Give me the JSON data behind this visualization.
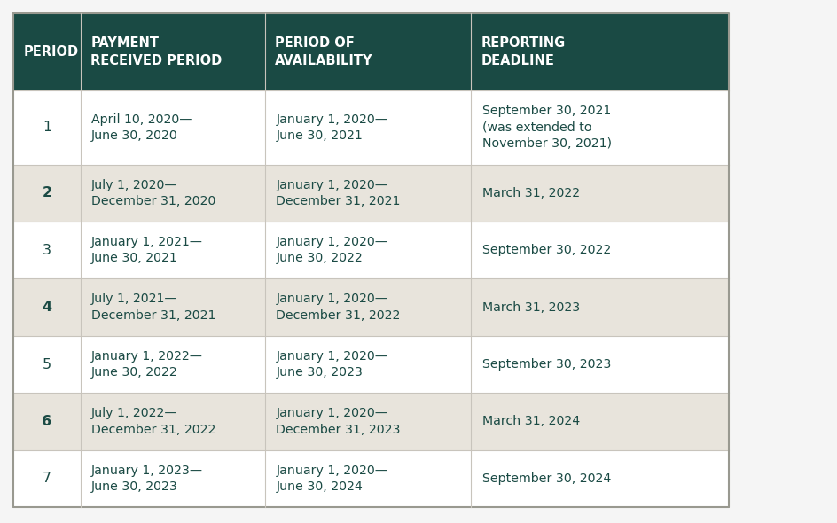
{
  "header_bg": "#1a4a44",
  "header_text_color": "#ffffff",
  "row_bg_odd": "#ffffff",
  "row_bg_even": "#e8e4dc",
  "text_color": "#1a4a44",
  "border_color": "#c8c4bc",
  "outer_border_color": "#999990",
  "col_headers": [
    "PERIOD",
    "PAYMENT\nRECEIVED PERIOD",
    "PERIOD OF\nAVAILABILITY",
    "REPORTING\nDEADLINE"
  ],
  "rows": [
    {
      "period": "1",
      "payment": "April 10, 2020—\nJune 30, 2020",
      "availability": "January 1, 2020—\nJune 30, 2021",
      "deadline": "September 30, 2021\n(was extended to\nNovember 30, 2021)"
    },
    {
      "period": "2",
      "payment": "July 1, 2020—\nDecember 31, 2020",
      "availability": "January 1, 2020—\nDecember 31, 2021",
      "deadline": "March 31, 2022"
    },
    {
      "period": "3",
      "payment": "January 1, 2021—\nJune 30, 2021",
      "availability": "January 1, 2020—\nJune 30, 2022",
      "deadline": "September 30, 2022"
    },
    {
      "period": "4",
      "payment": "July 1, 2021—\nDecember 31, 2021",
      "availability": "January 1, 2020—\nDecember 31, 2022",
      "deadline": "March 31, 2023"
    },
    {
      "period": "5",
      "payment": "January 1, 2022—\nJune 30, 2022",
      "availability": "January 1, 2020—\nJune 30, 2023",
      "deadline": "September 30, 2023"
    },
    {
      "period": "6",
      "payment": "July 1, 2022—\nDecember 31, 2022",
      "availability": "January 1, 2020—\nDecember 31, 2023",
      "deadline": "March 31, 2024"
    },
    {
      "period": "7",
      "payment": "January 1, 2023—\nJune 30, 2023",
      "availability": "January 1, 2020—\nJune 30, 2024",
      "deadline": "September 30, 2024"
    }
  ],
  "figsize": [
    9.45,
    5.9
  ],
  "dpi": 100,
  "fig_bg": "#f5f5f5",
  "table_bg": "#ffffff"
}
